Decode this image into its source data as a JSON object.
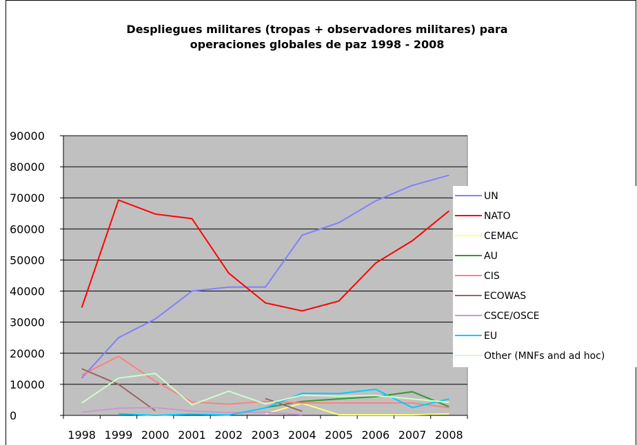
{
  "chart_data": {
    "type": "line",
    "title": "Despliegues militares (tropas + observadores militares) para operaciones globales de paz 1998 - 2008",
    "categories": [
      "1998",
      "1999",
      "2000",
      "2001",
      "2002",
      "2003",
      "2004",
      "2005",
      "2006",
      "2007",
      "2008"
    ],
    "ylim": [
      0,
      90000
    ],
    "yticks": [
      0,
      10000,
      20000,
      30000,
      40000,
      50000,
      60000,
      70000,
      80000,
      90000
    ],
    "grid": true,
    "legend": "right",
    "series": [
      {
        "name": "UN",
        "color": "#8080ff",
        "values": [
          12000,
          25000,
          31000,
          40000,
          41300,
          41300,
          58000,
          62000,
          69000,
          74000,
          77300
        ]
      },
      {
        "name": "NATO",
        "color": "#ff0000",
        "values": [
          34700,
          69300,
          64800,
          63300,
          45800,
          36200,
          33600,
          36800,
          49000,
          56200,
          65800
        ]
      },
      {
        "name": "CEMAC",
        "color": "#ffff80",
        "values": [
          null,
          null,
          null,
          null,
          null,
          500,
          3900,
          200,
          200,
          200,
          500
        ]
      },
      {
        "name": "AU",
        "color": "#339933",
        "values": [
          null,
          null,
          null,
          null,
          null,
          2500,
          4500,
          5300,
          6000,
          7600,
          2800
        ]
      },
      {
        "name": "CIS",
        "color": "#ff8080",
        "values": [
          13000,
          19000,
          11000,
          4300,
          3600,
          4500,
          4000,
          4000,
          4000,
          4000,
          2500
        ]
      },
      {
        "name": "ECOWAS",
        "color": "#996666",
        "values": [
          15000,
          10000,
          1500,
          null,
          null,
          5400,
          1300,
          null,
          null,
          null,
          null
        ]
      },
      {
        "name": "CSCE/OSCE",
        "color": "#cc99cc",
        "values": [
          1000,
          2300,
          2500,
          1400,
          900,
          1000,
          200,
          null,
          null,
          null,
          null
        ]
      },
      {
        "name": "EU",
        "color": "#00ccff",
        "values": [
          null,
          500,
          0,
          400,
          100,
          2400,
          7100,
          7000,
          8400,
          2500,
          5300
        ]
      },
      {
        "name": "Other (MNFs and ad hoc)",
        "color": "#ccffcc",
        "values": [
          4000,
          12000,
          13500,
          3400,
          7800,
          3700,
          6500,
          6200,
          6400,
          5300,
          4200
        ]
      }
    ]
  }
}
